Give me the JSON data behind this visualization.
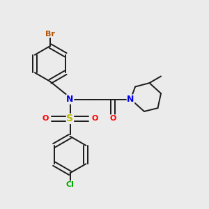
{
  "bg_color": "#ebebeb",
  "bond_color": "#1a1a1a",
  "bond_width": 1.4,
  "dbo": 0.012,
  "figsize": [
    3.0,
    3.0
  ],
  "dpi": 100,
  "colors": {
    "Br": "#b05000",
    "N": "#0000ee",
    "S": "#bbbb00",
    "O": "#ff0000",
    "Cl": "#00aa00",
    "C": "#1a1a1a"
  }
}
